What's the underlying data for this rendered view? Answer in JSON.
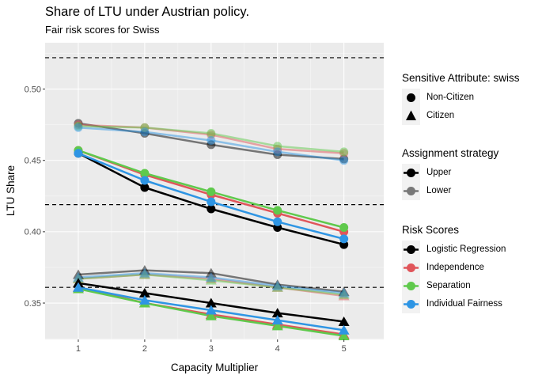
{
  "chart_data": {
    "type": "line",
    "title": "Share of LTU under Austrian policy.",
    "subtitle": "Fair risk scores for Swiss",
    "xlabel": "Capacity Multiplier",
    "ylabel": "LTU  Share",
    "x": [
      1,
      2,
      3,
      4,
      5
    ],
    "x_ticks": [
      "1",
      "2",
      "3",
      "4",
      "5"
    ],
    "xlim": [
      0.5,
      5.6
    ],
    "ylim": [
      0.3245,
      0.5325
    ],
    "y_ticks": [
      {
        "value": 0.35,
        "label": "0.35"
      },
      {
        "value": 0.4,
        "label": "0.40"
      },
      {
        "value": 0.45,
        "label": "0.45"
      },
      {
        "value": 0.5,
        "label": "0.50"
      }
    ],
    "hlines": [
      0.522,
      0.419,
      0.361
    ],
    "grid": true,
    "legend_position": "right",
    "colors": {
      "Logistic Regression": "#000000",
      "Independence": "#E0555A",
      "Separation": "#5FC94C",
      "Individual Fairness": "#2E95E4",
      "panel": "#EBEBEB",
      "grid_major": "#FFFFFF"
    },
    "series": [
      {
        "score": "Logistic Regression",
        "strategy": "Upper",
        "attribute": "Non-Citizen",
        "values": [
          0.455,
          0.431,
          0.416,
          0.403,
          0.391
        ]
      },
      {
        "score": "Independence",
        "strategy": "Upper",
        "attribute": "Non-Citizen",
        "values": [
          0.457,
          0.44,
          0.426,
          0.413,
          0.4
        ]
      },
      {
        "score": "Separation",
        "strategy": "Upper",
        "attribute": "Non-Citizen",
        "values": [
          0.457,
          0.441,
          0.428,
          0.415,
          0.403
        ]
      },
      {
        "score": "Individual Fairness",
        "strategy": "Upper",
        "attribute": "Non-Citizen",
        "values": [
          0.455,
          0.436,
          0.421,
          0.407,
          0.395
        ]
      },
      {
        "score": "Logistic Regression",
        "strategy": "Lower",
        "attribute": "Non-Citizen",
        "values": [
          0.476,
          0.469,
          0.461,
          0.454,
          0.451
        ]
      },
      {
        "score": "Independence",
        "strategy": "Lower",
        "attribute": "Non-Citizen",
        "values": [
          0.475,
          0.473,
          0.468,
          0.458,
          0.455
        ]
      },
      {
        "score": "Separation",
        "strategy": "Lower",
        "attribute": "Non-Citizen",
        "values": [
          0.474,
          0.473,
          0.469,
          0.46,
          0.456
        ]
      },
      {
        "score": "Individual Fairness",
        "strategy": "Lower",
        "attribute": "Non-Citizen",
        "values": [
          0.473,
          0.47,
          0.464,
          0.456,
          0.45
        ]
      },
      {
        "score": "Logistic Regression",
        "strategy": "Upper",
        "attribute": "Citizen",
        "values": [
          0.364,
          0.357,
          0.35,
          0.343,
          0.337
        ]
      },
      {
        "score": "Independence",
        "strategy": "Upper",
        "attribute": "Citizen",
        "values": [
          0.361,
          0.35,
          0.342,
          0.335,
          0.328
        ]
      },
      {
        "score": "Separation",
        "strategy": "Upper",
        "attribute": "Citizen",
        "values": [
          0.36,
          0.35,
          0.341,
          0.334,
          0.327
        ]
      },
      {
        "score": "Individual Fairness",
        "strategy": "Upper",
        "attribute": "Citizen",
        "values": [
          0.361,
          0.352,
          0.345,
          0.338,
          0.331
        ]
      },
      {
        "score": "Logistic Regression",
        "strategy": "Lower",
        "attribute": "Citizen",
        "values": [
          0.37,
          0.373,
          0.371,
          0.363,
          0.358
        ]
      },
      {
        "score": "Independence",
        "strategy": "Lower",
        "attribute": "Citizen",
        "values": [
          0.367,
          0.37,
          0.367,
          0.361,
          0.355
        ]
      },
      {
        "score": "Separation",
        "strategy": "Lower",
        "attribute": "Citizen",
        "values": [
          0.367,
          0.37,
          0.366,
          0.361,
          0.356
        ]
      },
      {
        "score": "Individual Fairness",
        "strategy": "Lower",
        "attribute": "Citizen",
        "values": [
          0.368,
          0.371,
          0.368,
          0.362,
          0.357
        ]
      }
    ],
    "legend": {
      "attribute": {
        "title": "Sensitive Attribute: swiss",
        "items": [
          "Non-Citizen",
          "Citizen"
        ]
      },
      "strategy": {
        "title": "Assignment strategy",
        "items": [
          "Upper",
          "Lower"
        ]
      },
      "scores": {
        "title": "Risk Scores",
        "items": [
          "Logistic Regression",
          "Independence",
          "Separation",
          "Individual Fairness"
        ]
      }
    }
  }
}
